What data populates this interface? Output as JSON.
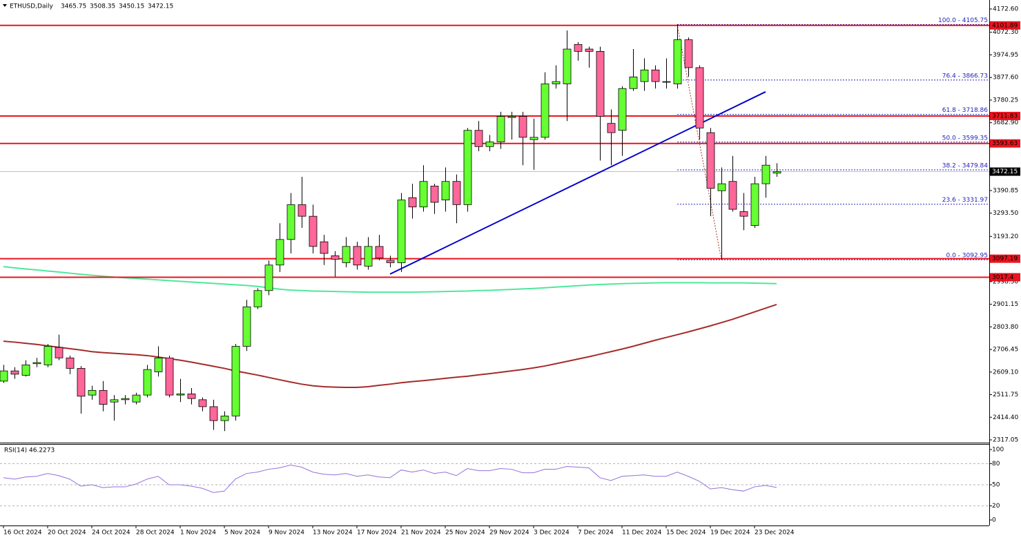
{
  "chart_data": {
    "type": "candlestick",
    "title": "ETHUSD,Daily",
    "categories": [
      "16 Oct 2024",
      null,
      null,
      null,
      "20 Oct 2024",
      null,
      null,
      null,
      "24 Oct 2024",
      null,
      null,
      null,
      "28 Oct 2024",
      null,
      null,
      null,
      "1 Nov 2024",
      null,
      null,
      null,
      "5 Nov 2024",
      null,
      null,
      null,
      "9 Nov 2024",
      null,
      null,
      null,
      "13 Nov 2024",
      null,
      null,
      null,
      "17 Nov 2024",
      null,
      null,
      null,
      "21 Nov 2024",
      null,
      null,
      null,
      "25 Nov 2024",
      null,
      null,
      null,
      "29 Nov 2024",
      null,
      null,
      null,
      "3 Dec 2024",
      null,
      null,
      null,
      "7 Dec 2024",
      null,
      null,
      null,
      "11 Dec 2024",
      null,
      null,
      null,
      "15 Dec 2024",
      null,
      null,
      null,
      "19 Dec 2024",
      null,
      null,
      null,
      "23 Dec 2024",
      null,
      null
    ],
    "candles": {
      "up_color": "#66ff33",
      "down_color": "#ff6699",
      "open": [
        2570,
        2614,
        2595,
        2645,
        2640,
        2715,
        2670,
        2625,
        2510,
        2530,
        2480,
        2490,
        2480,
        2510,
        2610,
        2670,
        2510,
        2515,
        2490,
        2460,
        2400,
        2420,
        2720,
        2890,
        2960,
        3070,
        3180,
        3330,
        3280,
        3170,
        3110,
        3080,
        3150,
        3065,
        3150,
        3090,
        3080,
        3360,
        3320,
        3410,
        3350,
        3430,
        3330,
        3650,
        3580,
        3600,
        3705,
        3710,
        3610,
        3620,
        3850,
        3850,
        4020,
        4000,
        3990,
        3680,
        3650,
        3830,
        3860,
        3910,
        3860,
        3850,
        4040,
        3920,
        3640,
        3390,
        3430,
        3300,
        3240,
        3420,
        3465.75
      ],
      "high": [
        2640,
        2630,
        2660,
        2670,
        2730,
        2770,
        2680,
        2635,
        2550,
        2570,
        2510,
        2510,
        2520,
        2640,
        2720,
        2680,
        2580,
        2540,
        2500,
        2490,
        2440,
        2730,
        2920,
        2970,
        3090,
        3250,
        3380,
        3450,
        3330,
        3200,
        3130,
        3190,
        3170,
        3190,
        3200,
        3110,
        3380,
        3420,
        3500,
        3420,
        3490,
        3460,
        3660,
        3690,
        3630,
        3730,
        3730,
        3730,
        3700,
        3900,
        3930,
        4080,
        4030,
        4010,
        4010,
        3740,
        3840,
        4000,
        3960,
        3930,
        3960,
        4106,
        4050,
        3930,
        3660,
        3490,
        3540,
        3380,
        3450,
        3540,
        3508.35
      ],
      "low": [
        2562,
        2580,
        2590,
        2630,
        2630,
        2660,
        2600,
        2430,
        2490,
        2440,
        2400,
        2470,
        2470,
        2500,
        2590,
        2500,
        2480,
        2470,
        2440,
        2360,
        2355,
        2400,
        2700,
        2880,
        2940,
        3040,
        3120,
        3230,
        3120,
        3070,
        3020,
        3060,
        3050,
        3050,
        3090,
        3060,
        3040,
        3270,
        3300,
        3290,
        3300,
        3250,
        3300,
        3560,
        3560,
        3570,
        3610,
        3500,
        3480,
        3610,
        3830,
        3690,
        3950,
        3920,
        3520,
        3500,
        3540,
        3820,
        3820,
        3830,
        3830,
        3830,
        3880,
        3610,
        3280,
        3093,
        3300,
        3220,
        3230,
        3360,
        3450.15
      ],
      "close": [
        2614,
        2600,
        2640,
        2650,
        2720,
        2670,
        2625,
        2505,
        2530,
        2470,
        2490,
        2495,
        2510,
        2620,
        2670,
        2510,
        2515,
        2495,
        2460,
        2400,
        2420,
        2720,
        2890,
        2960,
        3070,
        3180,
        3330,
        3280,
        3150,
        3120,
        3095,
        3150,
        3070,
        3150,
        3100,
        3080,
        3350,
        3320,
        3430,
        3340,
        3430,
        3330,
        3650,
        3580,
        3600,
        3710,
        3710,
        3620,
        3620,
        3850,
        3860,
        4000,
        3990,
        3990,
        3710,
        3640,
        3830,
        3880,
        3910,
        3860,
        3860,
        4040,
        3920,
        3660,
        3400,
        3420,
        3310,
        3280,
        3420,
        3500,
        3472.15
      ]
    },
    "series": [
      {
        "color": "#4de89a",
        "values": [
          3063,
          3058,
          3053,
          3049,
          3044,
          3040,
          3035,
          3030,
          3026,
          3022,
          3018,
          3015,
          3012,
          3009,
          3006,
          3003,
          3000,
          2997,
          2994,
          2991,
          2988,
          2985,
          2982,
          2978,
          2972,
          2966,
          2962,
          2960,
          2958,
          2957,
          2956,
          2955,
          2954,
          2953,
          2953,
          2953,
          2953,
          2953,
          2954,
          2955,
          2956,
          2957,
          2958,
          2960,
          2961,
          2963,
          2965,
          2967,
          2969,
          2972,
          2975,
          2978,
          2981,
          2984,
          2986,
          2988,
          2990,
          2991,
          2992,
          2993,
          2994,
          2994,
          2994,
          2994,
          2993,
          2993,
          2993,
          2993,
          2992,
          2991,
          2990
        ]
      },
      {
        "color": "#a52a2a",
        "values": [
          2742,
          2738,
          2733,
          2728,
          2722,
          2716,
          2710,
          2704,
          2697,
          2693,
          2690,
          2687,
          2684,
          2680,
          2674,
          2667,
          2660,
          2652,
          2643,
          2634,
          2625,
          2614,
          2605,
          2596,
          2586,
          2576,
          2566,
          2557,
          2550,
          2546,
          2544,
          2543,
          2543,
          2546,
          2552,
          2557,
          2563,
          2568,
          2572,
          2577,
          2582,
          2587,
          2591,
          2597,
          2602,
          2608,
          2614,
          2620,
          2627,
          2635,
          2645,
          2655,
          2665,
          2675,
          2686,
          2697,
          2708,
          2720,
          2733,
          2746,
          2758,
          2770,
          2782,
          2795,
          2808,
          2822,
          2836,
          2852,
          2868,
          2884,
          2900
        ]
      }
    ],
    "ylim": [
      2317.05,
      4172.6
    ],
    "yticks": [
      {
        "value": 4172.6,
        "label": "4172.60"
      },
      {
        "value": 4072.3,
        "label": "4072.30"
      },
      3974.95,
      {
        "value": 3877.6,
        "label": "3877.60"
      },
      3780.25,
      {
        "value": 3682.9,
        "label": "3682.90"
      },
      3390.85,
      {
        "value": 3293.5,
        "label": "3293.50"
      },
      {
        "value": 3193.2,
        "label": "3193.20"
      },
      {
        "value": 2998.5,
        "label": "2998.50"
      },
      2901.15,
      {
        "value": 2803.8,
        "label": "2803.80"
      },
      2706.45,
      {
        "value": 2609.1,
        "label": "2609.10"
      },
      2511.75,
      {
        "value": 2414.4,
        "label": "2414.40"
      },
      2317.05
    ],
    "hlines": {
      "color": "#e8141e",
      "values": [
        4101.89,
        3711.83,
        3593.63,
        3097.19,
        3017.4
      ]
    },
    "fib_levels": {
      "color": "#2222bb",
      "levels": [
        {
          "value": 4105.75,
          "label": "100.0 - 4105.75"
        },
        {
          "value": 3866.73,
          "label": "76.4 - 3866.73"
        },
        {
          "value": 3718.86,
          "label": "61.8 - 3718.86"
        },
        {
          "value": 3599.35,
          "label": "50.0 - 3599.35"
        },
        {
          "value": 3479.84,
          "label": "38.2 - 3479.84"
        },
        {
          "value": 3331.97,
          "label": "23.6 - 3331.97"
        },
        {
          "value": 3092.95,
          "label": "0.0 - 3092.95"
        }
      ]
    },
    "trendline": {
      "color": "#0000cc",
      "values": [
        3031,
        3816
      ]
    },
    "rsi": {
      "name": "RSI(14)",
      "color": "#9370db",
      "values": [
        60,
        58,
        61,
        62,
        66,
        63,
        58,
        48,
        50,
        46,
        47,
        47,
        51,
        58,
        62,
        50,
        50,
        48,
        45,
        39,
        41,
        58,
        66,
        68,
        72,
        74,
        78,
        75,
        68,
        65,
        64,
        66,
        62,
        64,
        61,
        60,
        71,
        68,
        71,
        66,
        68,
        63,
        73,
        70,
        70,
        73,
        72,
        67,
        67,
        72,
        72,
        76,
        75,
        74,
        60,
        56,
        62,
        63,
        64,
        62,
        62,
        68,
        62,
        55,
        44,
        46,
        43,
        41,
        47,
        49,
        46.2273
      ],
      "ylim": [
        0,
        100
      ],
      "yticks": [
        0,
        20,
        50,
        80,
        100
      ],
      "levels": [
        20,
        50,
        80
      ]
    }
  }
}
